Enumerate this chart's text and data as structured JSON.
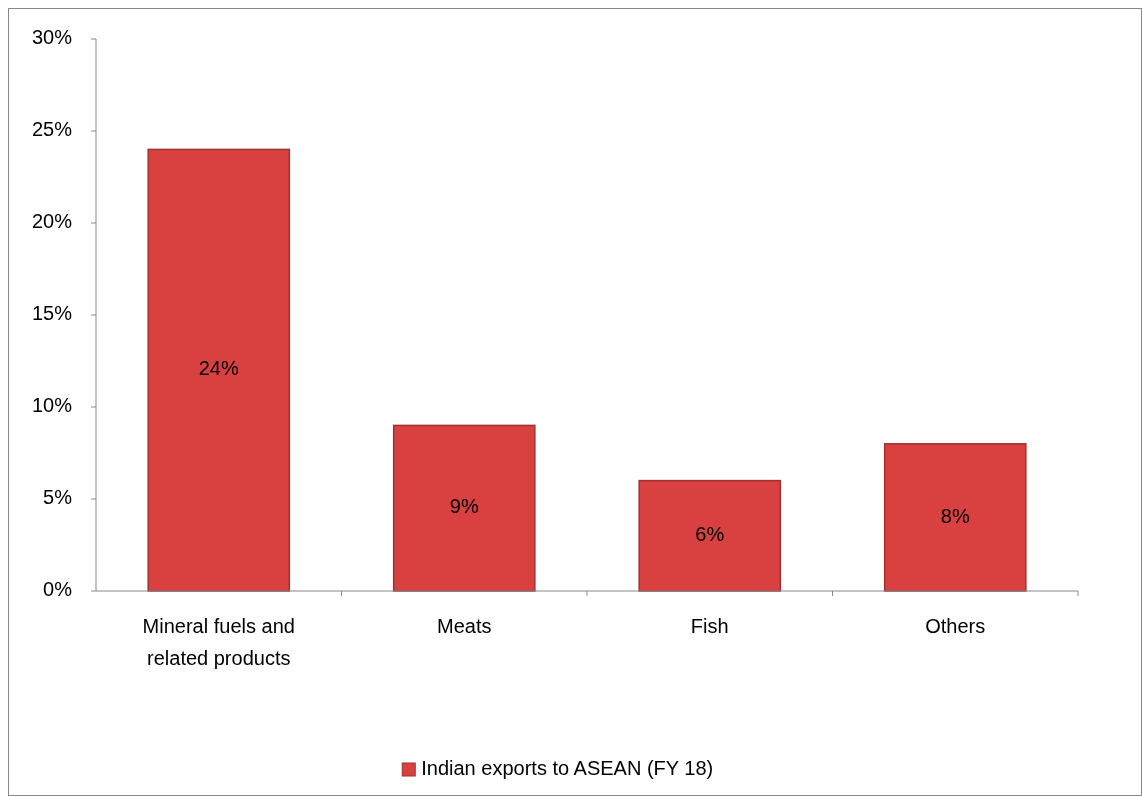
{
  "chart_data": {
    "type": "bar",
    "categories": [
      "Mineral fuels and related products",
      "Meats",
      "Fish",
      "Others"
    ],
    "series": [
      {
        "name": "Indian exports to ASEAN (FY 18)",
        "color": "#d94040",
        "values": [
          24,
          9,
          6,
          8
        ],
        "value_labels": [
          "24%",
          "9%",
          "6%",
          "8%"
        ]
      }
    ],
    "ylim": [
      0,
      30
    ],
    "yticks": [
      {
        "value": 0,
        "label": "0%"
      },
      {
        "value": 5,
        "label": "5%"
      },
      {
        "value": 10,
        "label": "10%"
      },
      {
        "value": 15,
        "label": "15%"
      },
      {
        "value": 20,
        "label": "20%"
      },
      {
        "value": 25,
        "label": "25%"
      },
      {
        "value": 30,
        "label": "30%"
      }
    ],
    "legend": "bottom",
    "grid": false
  }
}
